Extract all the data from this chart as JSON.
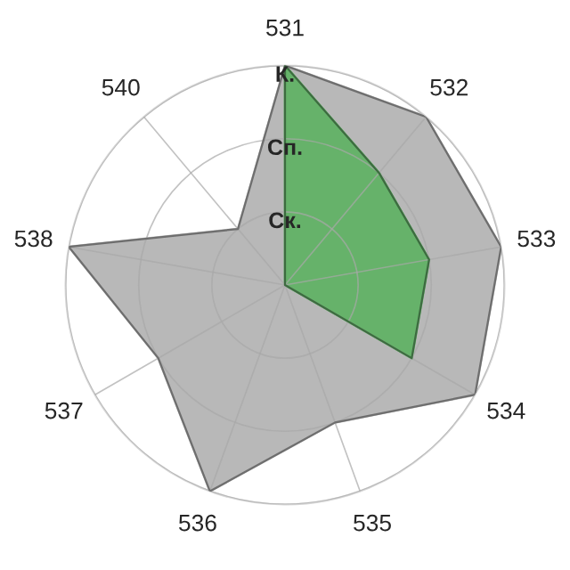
{
  "chart_data": {
    "type": "radar",
    "categories": [
      "531",
      "532",
      "533",
      "534",
      "535",
      "536",
      "537",
      "538",
      "540"
    ],
    "series": [
      {
        "color": "#b8b8b8",
        "values": [
          3,
          3,
          3,
          3,
          2,
          3,
          2,
          3,
          1
        ]
      },
      {
        "color": "#66b26a",
        "values": [
          3,
          2,
          2,
          2,
          0,
          0,
          0,
          0,
          0
        ]
      }
    ],
    "ylim": [
      0,
      3
    ],
    "yticks": [
      {
        "value": 1,
        "label": "Ск."
      },
      {
        "value": 2,
        "label": "Сп."
      },
      {
        "value": 3,
        "label": "К."
      }
    ],
    "grid": true,
    "legend": false
  }
}
